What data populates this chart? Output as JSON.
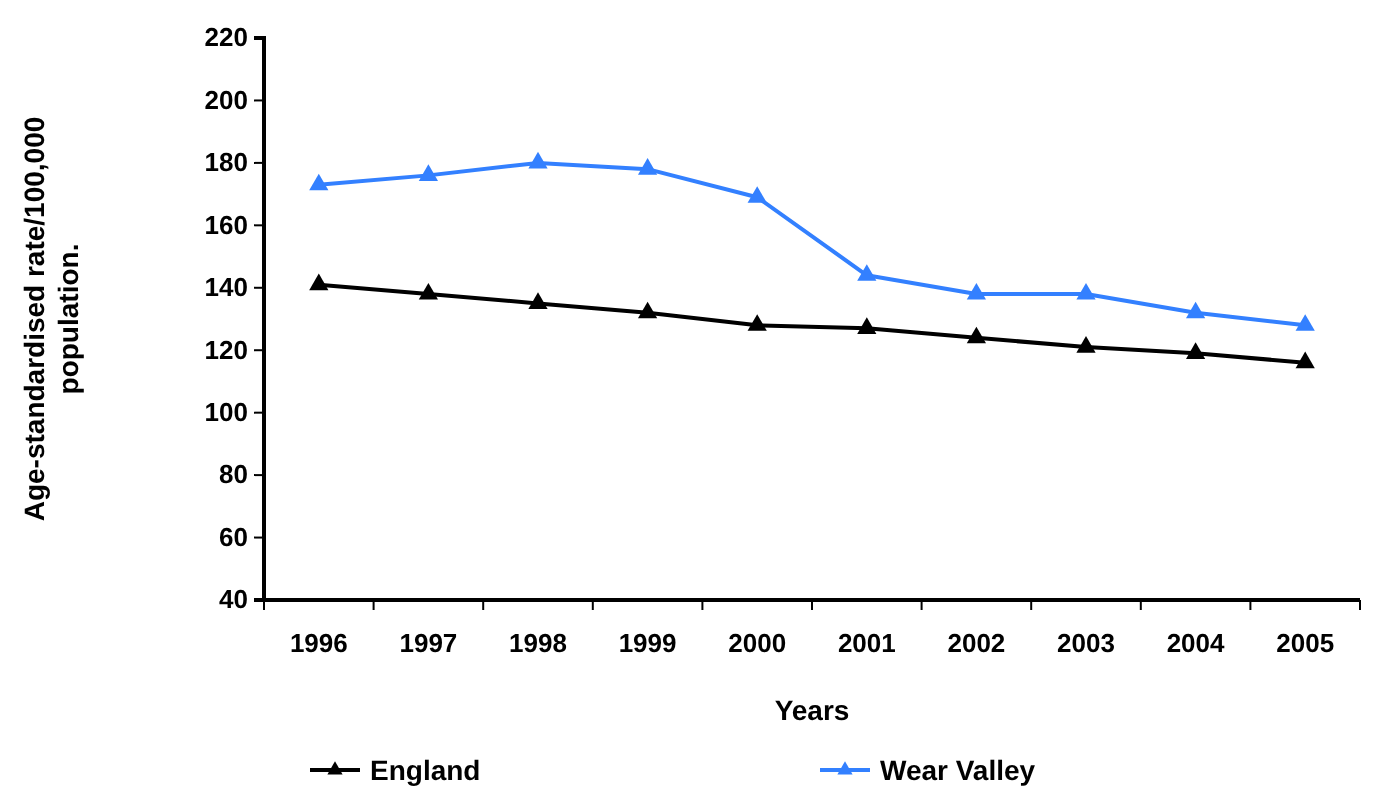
{
  "chart_data": {
    "type": "line",
    "xlabel": "Years",
    "ylabel": "Age-standardised rate/100,000 population.",
    "categories": [
      "1996",
      "1997",
      "1998",
      "1999",
      "2000",
      "2001",
      "2002",
      "2003",
      "2004",
      "2005"
    ],
    "series": [
      {
        "name": "England",
        "color": "#000000",
        "values": [
          141,
          138,
          135,
          132,
          128,
          127,
          124,
          121,
          119,
          116
        ]
      },
      {
        "name": "Wear Valley",
        "color": "#3380ff",
        "values": [
          173,
          176,
          180,
          178,
          169,
          144,
          138,
          138,
          132,
          128
        ]
      }
    ],
    "ylim": [
      40,
      220
    ],
    "yticks": [
      40,
      60,
      80,
      100,
      120,
      140,
      160,
      180,
      200,
      220
    ],
    "grid": false,
    "legend": "bottom",
    "marker": "triangle",
    "line_style": "solid"
  }
}
